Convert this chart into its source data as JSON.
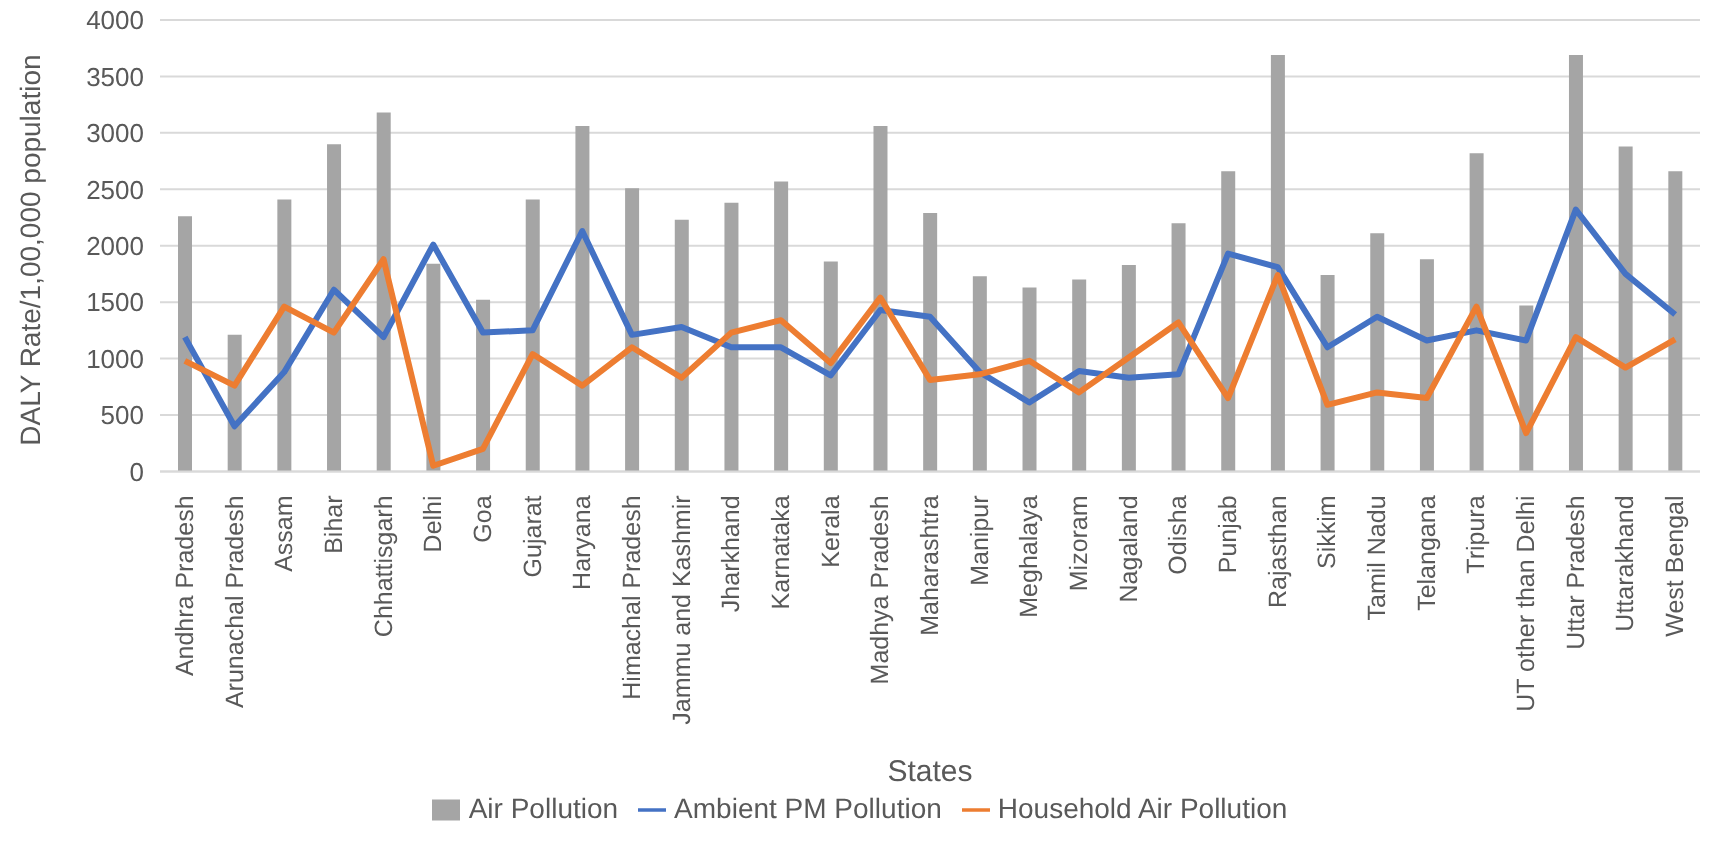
{
  "chart_data": {
    "type": "bar",
    "xlabel": "States",
    "ylabel": "DALY Rate/1,00,000 population",
    "categories": [
      "Andhra Pradesh",
      "Arunachal Pradesh",
      "Assam",
      "Bihar",
      "Chhattisgarh",
      "Delhi",
      "Goa",
      "Gujarat",
      "Haryana",
      "Himachal Pradesh",
      "Jammu and Kashmir",
      "Jharkhand",
      "Karnataka",
      "Kerala",
      "Madhya Pradesh",
      "Maharashtra",
      "Manipur",
      "Meghalaya",
      "Mizoram",
      "Nagaland",
      "Odisha",
      "Punjab",
      "Rajasthan",
      "Sikkim",
      "Tamil Nadu",
      "Telangana",
      "Tripura",
      "UT other than Delhi",
      "Uttar Pradesh",
      "Uttarakhand",
      "West Bengal"
    ],
    "series": [
      {
        "name": "Air Pollution",
        "color": "#a5a5a5",
        "values": [
          2260,
          1210,
          2410,
          2900,
          3180,
          1840,
          1520,
          2410,
          3060,
          2510,
          2230,
          2380,
          2570,
          1860,
          3060,
          2290,
          1730,
          1630,
          1700,
          1830,
          2200,
          2660,
          3690,
          1740,
          2110,
          1880,
          2820,
          1470,
          3690,
          2880,
          2660
        ]
      },
      {
        "name": "Ambient PM Pollution",
        "type": "line",
        "color": "#4472c4",
        "values": [
          1190,
          400,
          880,
          1610,
          1190,
          2010,
          1230,
          1250,
          2130,
          1210,
          1280,
          1100,
          1100,
          850,
          1430,
          1370,
          880,
          610,
          890,
          830,
          860,
          1930,
          1810,
          1100,
          1370,
          1160,
          1250,
          1160,
          2320,
          1750,
          1390
        ]
      },
      {
        "name": "Household Air Pollution",
        "type": "line",
        "color": "#ed7d31",
        "values": [
          980,
          760,
          1460,
          1230,
          1880,
          50,
          200,
          1040,
          760,
          1100,
          830,
          1230,
          1340,
          960,
          1540,
          810,
          860,
          980,
          700,
          1010,
          1320,
          650,
          1740,
          590,
          700,
          650,
          1460,
          340,
          1190,
          920,
          1170
        ]
      }
    ],
    "ylim": [
      0,
      4000
    ],
    "yticks": [
      0,
      500,
      1000,
      1500,
      2000,
      2500,
      3000,
      3500,
      4000
    ],
    "grid": "y",
    "legend": "bottom",
    "marker": "none",
    "line_style": "solid"
  }
}
